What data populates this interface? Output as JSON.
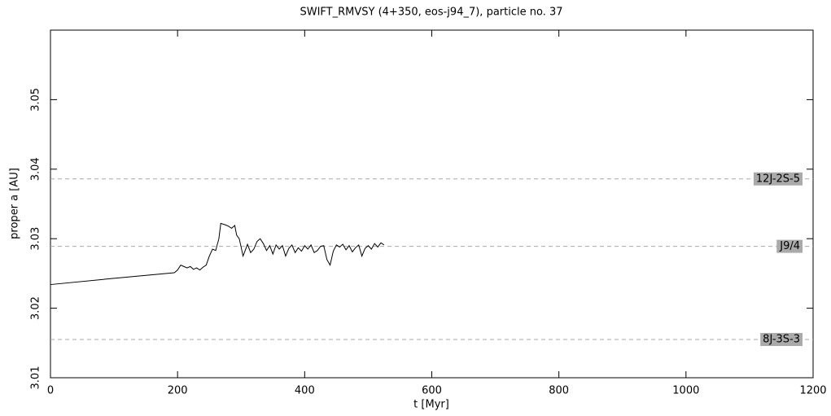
{
  "chart_data": {
    "type": "line",
    "title": "SWIFT_RMVSY (4+350, eos-j94_7), particle no. 37",
    "x_label": "t [Myr]",
    "y_label": "proper a [AU]",
    "xlim": [
      0,
      1200
    ],
    "xticks": [
      0,
      200,
      400,
      600,
      800,
      1000,
      1200
    ],
    "ylim": [
      3.01,
      3.06
    ],
    "yticks": [
      3.01,
      3.02,
      3.03,
      3.04,
      3.05
    ],
    "resonances": [
      {
        "label": "12J-2S-5",
        "value": 3.0386,
        "color": "#aaaaaa"
      },
      {
        "label": "J9/4",
        "value": 3.0289,
        "color": "#aaaaaa"
      },
      {
        "label": "8J-3S-3",
        "value": 3.0155,
        "color": "#aaaaaa"
      }
    ],
    "series": [
      {
        "color": "#000000",
        "x": [
          0,
          100,
          195,
          200,
          205,
          210,
          215,
          220,
          225,
          230,
          235,
          240,
          245,
          250,
          255,
          260,
          265,
          268,
          275,
          280,
          285,
          290,
          293,
          297,
          300,
          303,
          306,
          310,
          315,
          320,
          325,
          330,
          335,
          340,
          345,
          350,
          355,
          360,
          365,
          370,
          375,
          380,
          385,
          390,
          395,
          400,
          405,
          410,
          415,
          420,
          425,
          430,
          435,
          440,
          445,
          450,
          455,
          460,
          465,
          470,
          475,
          480,
          485,
          490,
          495,
          500,
          505,
          510,
          515,
          520,
          525
        ],
        "values": [
          3.0234,
          3.0243,
          3.0251,
          3.0255,
          3.0262,
          3.026,
          3.0258,
          3.026,
          3.0256,
          3.0258,
          3.0255,
          3.0259,
          3.0262,
          3.0275,
          3.0285,
          3.0283,
          3.03,
          3.0322,
          3.032,
          3.0318,
          3.0315,
          3.0319,
          3.0305,
          3.03,
          3.0288,
          3.0275,
          3.0282,
          3.0292,
          3.028,
          3.0285,
          3.0296,
          3.03,
          3.0293,
          3.0283,
          3.029,
          3.0278,
          3.0291,
          3.0285,
          3.029,
          3.0275,
          3.0286,
          3.0291,
          3.028,
          3.0287,
          3.0282,
          3.029,
          3.0285,
          3.0291,
          3.028,
          3.0283,
          3.0289,
          3.029,
          3.027,
          3.0262,
          3.0282,
          3.0291,
          3.0288,
          3.0292,
          3.0284,
          3.029,
          3.0281,
          3.0287,
          3.0291,
          3.0275,
          3.0286,
          3.029,
          3.0285,
          3.0293,
          3.0288,
          3.0294,
          3.0291
        ]
      }
    ]
  }
}
